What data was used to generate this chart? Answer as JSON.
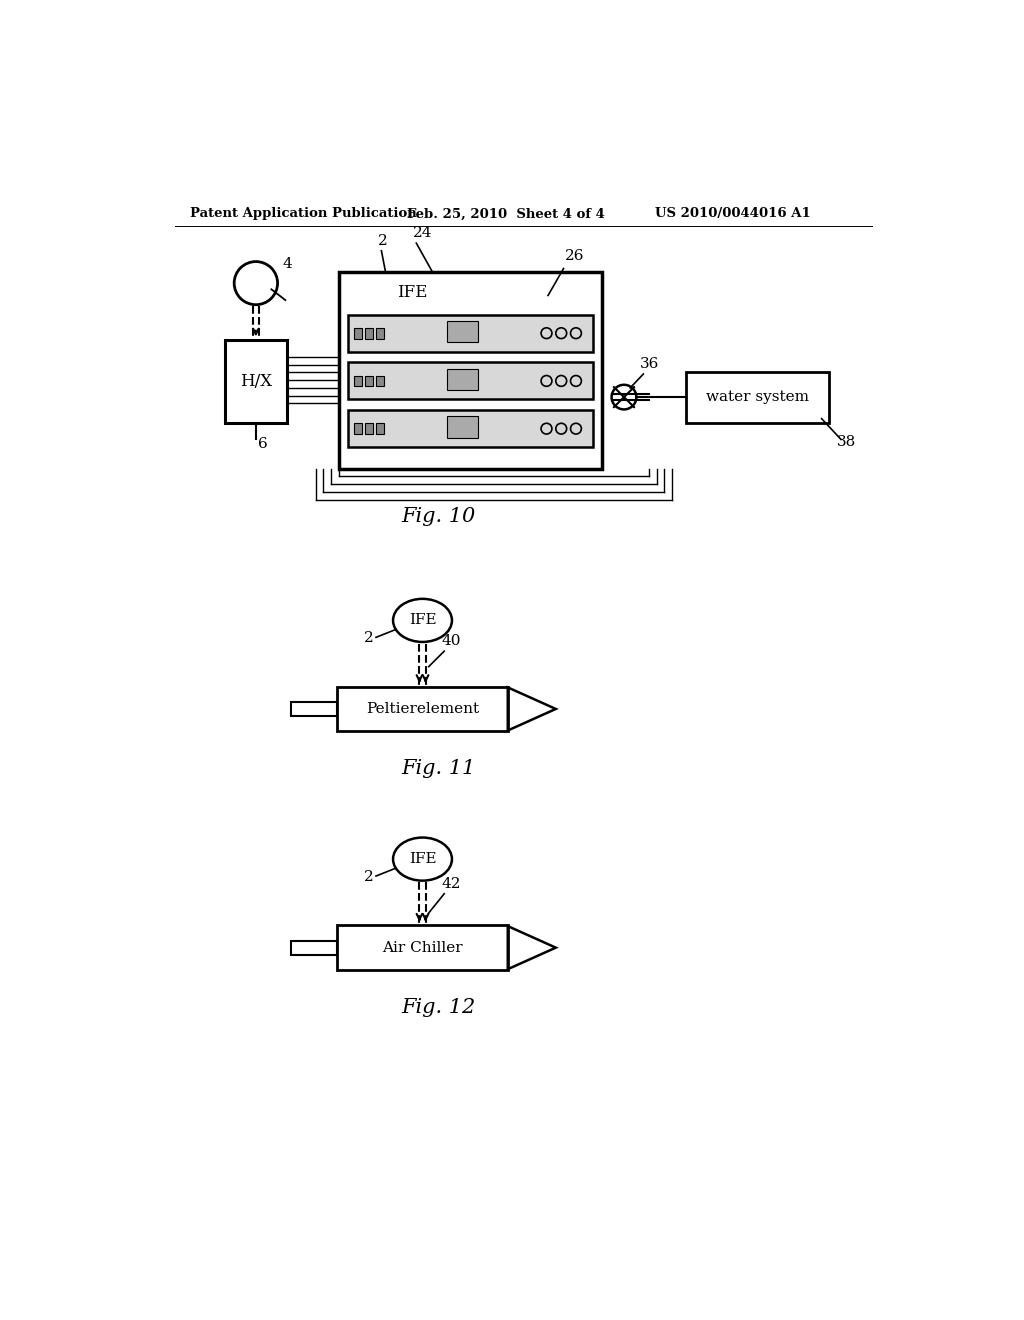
{
  "bg_color": "#ffffff",
  "header_left": "Patent Application Publication",
  "header_mid": "Feb. 25, 2010  Sheet 4 of 4",
  "header_right": "US 2010/0044016 A1",
  "fig10_label": "Fig. 10",
  "fig11_label": "Fig. 11",
  "fig12_label": "Fig. 12",
  "text_color": "#000000",
  "line_color": "#000000",
  "lw_thick": 2.5,
  "lw_med": 1.8,
  "lw_thin": 1.2
}
